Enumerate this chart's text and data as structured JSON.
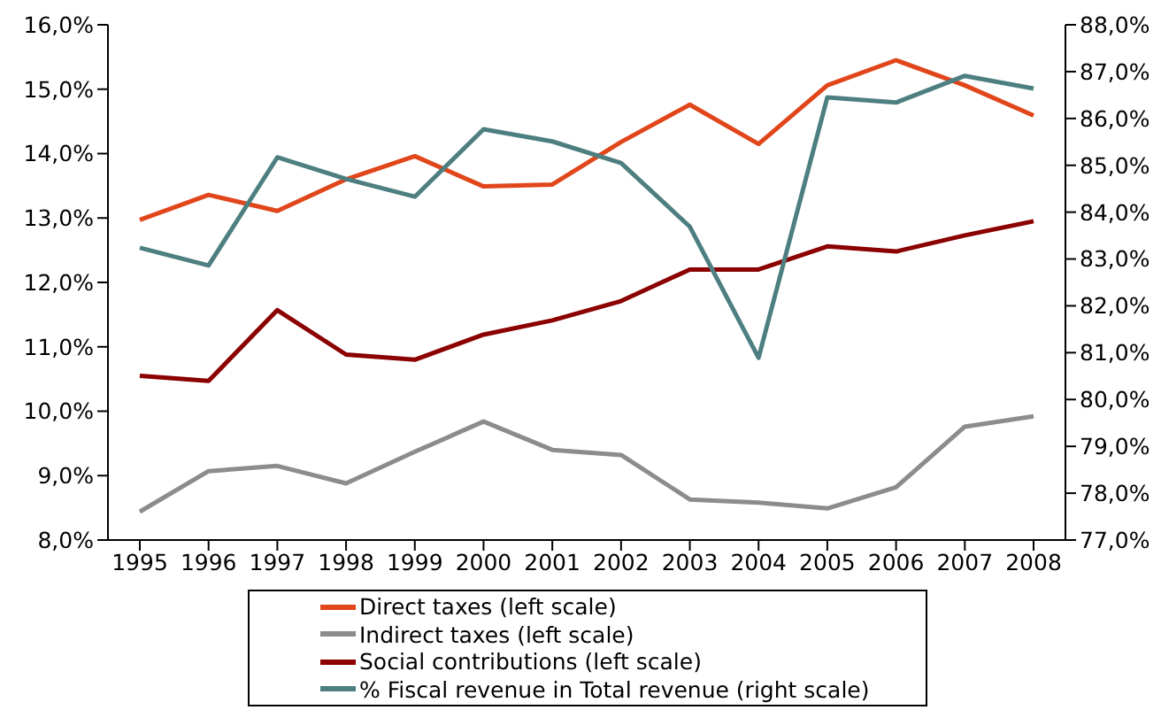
{
  "chart_data": {
    "type": "line",
    "categories": [
      "1995",
      "1996",
      "1997",
      "1998",
      "1999",
      "2000",
      "2001",
      "2002",
      "2003",
      "2004",
      "2005",
      "2006",
      "2007",
      "2008"
    ],
    "series": [
      {
        "name": "Direct taxes (left scale)",
        "color": "#e0461a",
        "values": [
          12.97,
          13.36,
          13.11,
          13.6,
          13.96,
          13.49,
          13.52,
          14.18,
          14.76,
          14.15,
          15.06,
          15.45,
          15.06,
          14.59
        ]
      },
      {
        "name": "Indirect taxes (left scale)",
        "color": "#8c8c8c",
        "values": [
          8.44,
          9.07,
          9.15,
          8.88,
          9.37,
          9.84,
          9.4,
          9.32,
          8.63,
          8.58,
          8.49,
          8.82,
          9.76,
          9.92
        ]
      },
      {
        "name": "Social contributions (left scale)",
        "color": "#8b0000",
        "values": [
          10.55,
          10.47,
          11.57,
          10.88,
          10.8,
          11.19,
          11.41,
          11.71,
          12.2,
          12.2,
          12.56,
          12.48,
          12.73,
          12.95
        ]
      },
      {
        "name": "% Fiscal revenue in Total revenue (right scale)",
        "color": "#4e7f80",
        "axis": "y2",
        "values": [
          83.24,
          82.86,
          85.17,
          84.71,
          84.33,
          85.77,
          85.51,
          85.05,
          83.69,
          80.89,
          86.45,
          86.34,
          86.91,
          86.64
        ]
      }
    ],
    "ylim": [
      8,
      16
    ],
    "yticks": [
      {
        "value": 8,
        "label": "8,0%"
      },
      {
        "value": 9,
        "label": "9,0%"
      },
      {
        "value": 10,
        "label": "10,0%"
      },
      {
        "value": 11,
        "label": "11,0%"
      },
      {
        "value": 12,
        "label": "12,0%"
      },
      {
        "value": 13,
        "label": "13,0%"
      },
      {
        "value": 14,
        "label": "14,0%"
      },
      {
        "value": 15,
        "label": "15,0%"
      },
      {
        "value": 16,
        "label": "16,0%"
      }
    ],
    "y2lim": [
      77,
      88
    ],
    "y2ticks": [
      {
        "value": 77,
        "label": "77,0%"
      },
      {
        "value": 78,
        "label": "78,0%"
      },
      {
        "value": 79,
        "label": "79,0%"
      },
      {
        "value": 80,
        "label": "80,0%"
      },
      {
        "value": 81,
        "label": "81,0%"
      },
      {
        "value": 82,
        "label": "82,0%"
      },
      {
        "value": 83,
        "label": "83,0%"
      },
      {
        "value": 84,
        "label": "84,0%"
      },
      {
        "value": 85,
        "label": "85,0%"
      },
      {
        "value": 86,
        "label": "86,0%"
      },
      {
        "value": 87,
        "label": "87,0%"
      },
      {
        "value": 88,
        "label": "88,0%"
      }
    ],
    "grid": false,
    "legend": "bottom",
    "marker": "none",
    "line_style": "solid"
  }
}
